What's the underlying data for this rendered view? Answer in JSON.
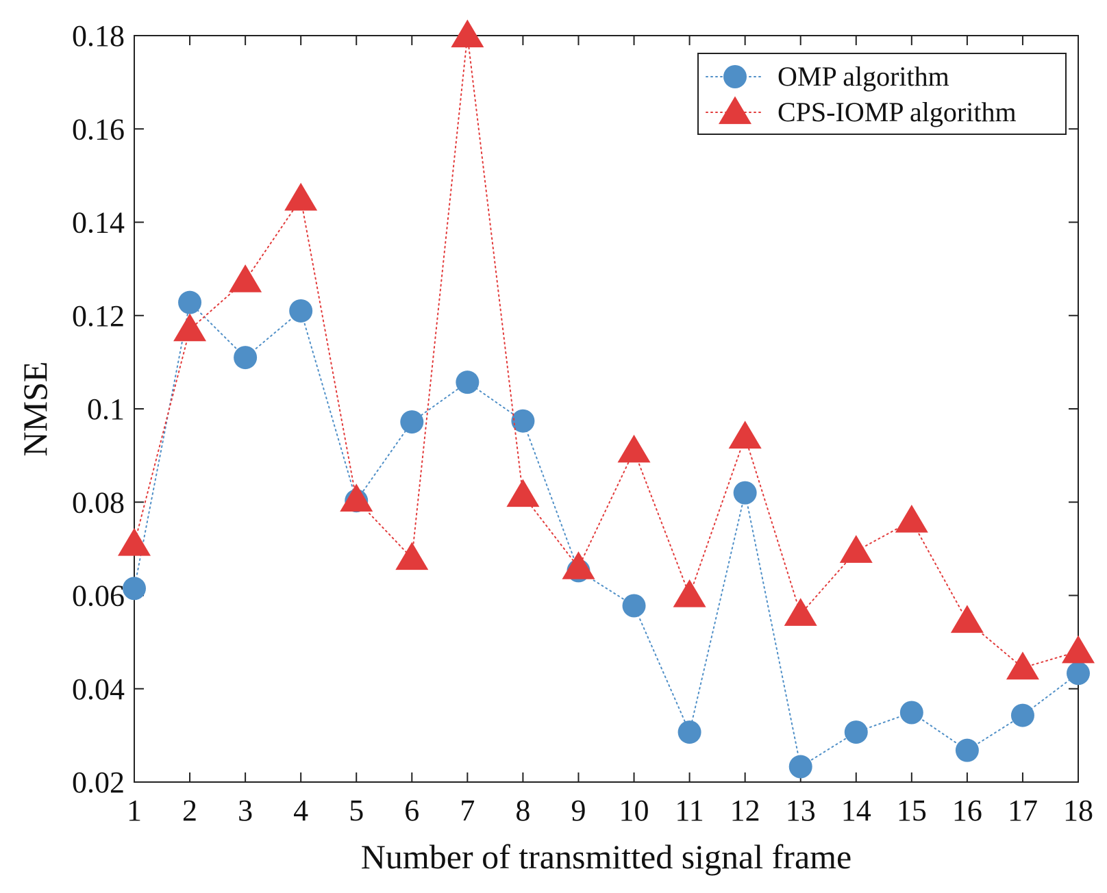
{
  "chart_data": {
    "type": "line",
    "title": "",
    "xlabel": "Number of transmitted signal frame",
    "ylabel": "NMSE",
    "x": [
      1,
      2,
      3,
      4,
      5,
      6,
      7,
      8,
      9,
      10,
      11,
      12,
      13,
      14,
      15,
      16,
      17,
      18
    ],
    "xlim": [
      1,
      18
    ],
    "ylim": [
      0.02,
      0.18
    ],
    "xticks": [
      "1",
      "2",
      "3",
      "4",
      "5",
      "6",
      "7",
      "8",
      "9",
      "10",
      "11",
      "12",
      "13",
      "14",
      "15",
      "16",
      "17",
      "18"
    ],
    "yticks": [
      0.02,
      0.04,
      0.06,
      0.08,
      0.1,
      0.12,
      0.14,
      0.16,
      0.18
    ],
    "ytick_labels": [
      "0.02",
      "0.04",
      "0.06",
      "0.08",
      "0.1",
      "0.12",
      "0.14",
      "0.16",
      "0.18"
    ],
    "grid": false,
    "legend_position": "top-right",
    "series": [
      {
        "name": "OMP algorithm",
        "marker": "circle",
        "line_style": "dotted",
        "color": "#4f8fc7",
        "values": [
          0.0615,
          0.1228,
          0.111,
          0.121,
          0.0803,
          0.0972,
          0.1057,
          0.0974,
          0.0653,
          0.0578,
          0.0307,
          0.082,
          0.0233,
          0.0307,
          0.0349,
          0.0268,
          0.0343,
          0.0433
        ]
      },
      {
        "name": "CPS-IOMP algorithm",
        "marker": "triangle",
        "line_style": "dotted",
        "color": "#e23b3b",
        "values": [
          0.071,
          0.117,
          0.1275,
          0.145,
          0.0805,
          0.068,
          0.18,
          0.0815,
          0.066,
          0.091,
          0.06,
          0.094,
          0.056,
          0.0695,
          0.076,
          0.0545,
          0.0445,
          0.048
        ]
      }
    ]
  }
}
